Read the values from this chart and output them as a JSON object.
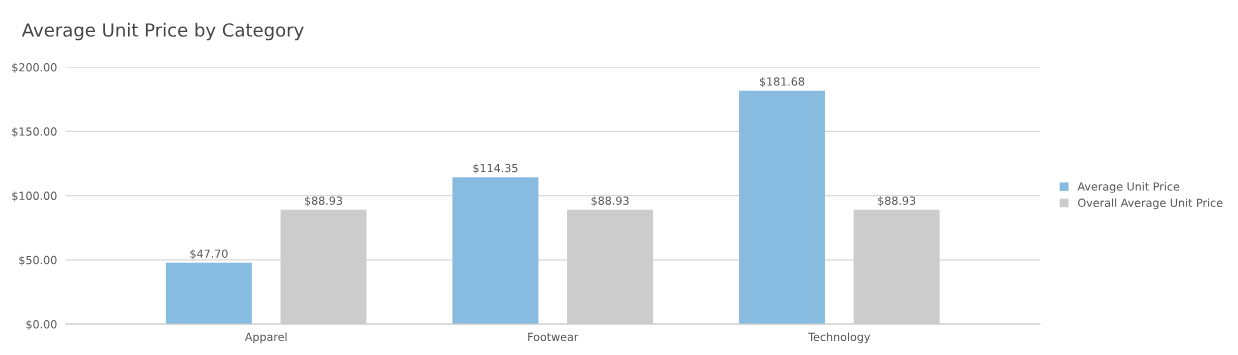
{
  "chart_data": {
    "type": "bar",
    "title": "Average Unit Price by Category",
    "categories": [
      "Apparel",
      "Footwear",
      "Technology"
    ],
    "series": [
      {
        "name": "Average Unit Price",
        "color": "#87bbe0",
        "values": [
          47.7,
          114.35,
          181.68
        ],
        "value_labels": [
          "$47.70",
          "$114.35",
          "$181.68"
        ]
      },
      {
        "name": "Overall Average Unit Price",
        "color": "#cccccc",
        "values": [
          88.93,
          88.93,
          88.93
        ],
        "value_labels": [
          "$88.93",
          "$88.93",
          "$88.93"
        ]
      }
    ],
    "ylim": [
      0,
      200
    ],
    "yticks": [
      {
        "value": 0,
        "label": "$0.00"
      },
      {
        "value": 50,
        "label": "$50.00"
      },
      {
        "value": 100,
        "label": "$100.00"
      },
      {
        "value": 150,
        "label": "$150.00"
      },
      {
        "value": 200,
        "label": "$200.00"
      }
    ],
    "grid": "y",
    "legend": "right"
  }
}
